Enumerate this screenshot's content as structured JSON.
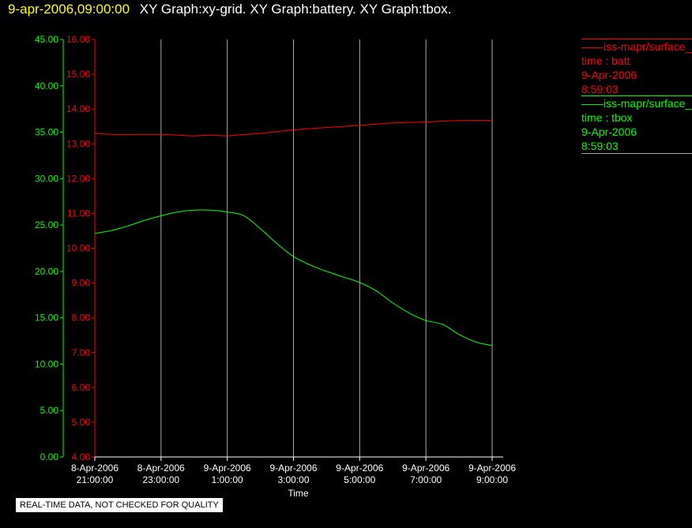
{
  "header": {
    "date": "9-apr-2006,09:00:00",
    "titles": "XY Graph:xy-grid.  XY Graph:battery.  XY Graph:tbox."
  },
  "legend": [
    {
      "name": "iss-mapr/surface_",
      "label": "time : batt",
      "date": "9-Apr-2006",
      "time": "8:59:03",
      "color": "#ff0000"
    },
    {
      "name": "iss-mapr/surface_",
      "label": "time : tbox",
      "date": "9-Apr-2006",
      "time": "8:59:03",
      "color": "#00ff00"
    }
  ],
  "note": "REAL-TIME DATA, NOT CHECKED FOR QUALITY",
  "chart_data": {
    "type": "line",
    "xlabel": "Time",
    "x_ticks": [
      [
        "8-Apr-2006",
        "21:00:00"
      ],
      [
        "8-Apr-2006",
        "23:00:00"
      ],
      [
        "9-Apr-2006",
        "1:00:00"
      ],
      [
        "9-Apr-2006",
        "3:00:00"
      ],
      [
        "9-Apr-2006",
        "5:00:00"
      ],
      [
        "9-Apr-2006",
        "7:00:00"
      ],
      [
        "9-Apr-2006",
        "9:00:00"
      ]
    ],
    "xlim_hours": [
      0,
      12
    ],
    "grid": "vertical",
    "y_left": {
      "color": "#00ff00",
      "ylim": [
        0,
        45
      ],
      "ticks": [
        "0.00",
        "5.00",
        "10.00",
        "15.00",
        "20.00",
        "25.00",
        "30.00",
        "35.00",
        "40.00",
        "45.00"
      ]
    },
    "y_right": {
      "color": "#ff0000",
      "ylim": [
        4,
        16
      ],
      "ticks": [
        "4.00",
        "5.00",
        "6.00",
        "7.00",
        "8.00",
        "9.00",
        "10.00",
        "11.00",
        "12.00",
        "13.00",
        "14.00",
        "15.00",
        "16.00"
      ]
    },
    "series": [
      {
        "axis": "right",
        "color": "#ff0000",
        "x": [
          0,
          0.5,
          1,
          2,
          2.5,
          3,
          3.5,
          4,
          4.5,
          5,
          6,
          7,
          8,
          9,
          10,
          11,
          12
        ],
        "y": [
          13.3,
          13.27,
          13.27,
          13.27,
          13.25,
          13.23,
          13.25,
          13.23,
          13.27,
          13.3,
          13.4,
          13.47,
          13.53,
          13.6,
          13.63,
          13.67,
          13.67
        ]
      },
      {
        "axis": "left",
        "color": "#00ff00",
        "x": [
          0,
          0.5,
          1,
          1.5,
          2,
          2.5,
          3,
          3.5,
          4,
          4.5,
          5,
          5.5,
          6,
          6.5,
          7,
          7.5,
          8,
          8.5,
          9,
          9.5,
          10,
          10.5,
          11,
          11.5,
          12
        ],
        "y": [
          24.1,
          24.4,
          24.9,
          25.5,
          26.0,
          26.4,
          26.6,
          26.6,
          26.4,
          26.0,
          24.6,
          23.0,
          21.6,
          20.7,
          20.0,
          19.4,
          18.8,
          17.9,
          16.6,
          15.5,
          14.7,
          14.3,
          13.2,
          12.4,
          12.0
        ]
      }
    ]
  }
}
